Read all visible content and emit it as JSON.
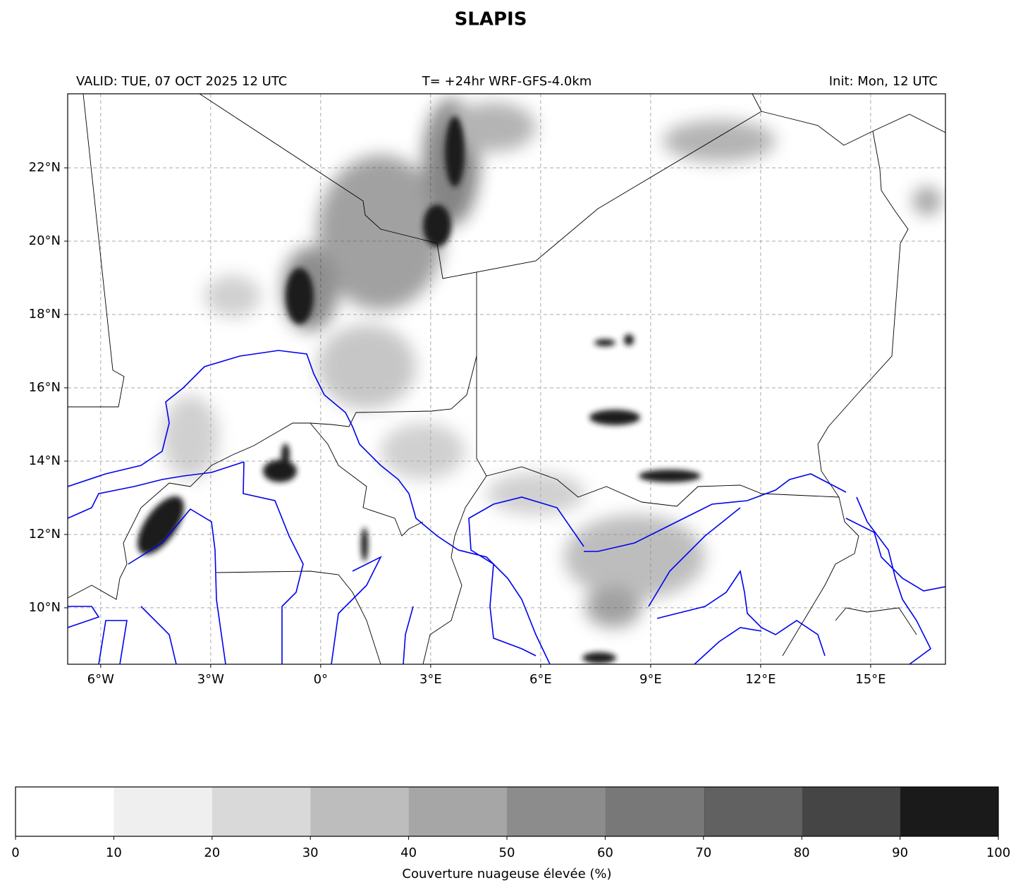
{
  "header": {
    "title": "SLAPIS",
    "valid": "VALID: TUE, 07 OCT 2025 12 UTC",
    "run": "T= +24hr WRF-GFS-4.0km",
    "init": "Init: Mon, 12 UTC"
  },
  "map": {
    "xlim": [
      -6.9,
      17.04
    ],
    "ylim": [
      8.46,
      24.02
    ],
    "xticks": [
      {
        "value": -6,
        "label": "6°W"
      },
      {
        "value": -3,
        "label": "3°W"
      },
      {
        "value": 0,
        "label": "0°"
      },
      {
        "value": 3,
        "label": "3°E"
      },
      {
        "value": 6,
        "label": "6°E"
      },
      {
        "value": 9,
        "label": "9°E"
      },
      {
        "value": 12,
        "label": "12°E"
      },
      {
        "value": 15,
        "label": "15°E"
      }
    ],
    "yticks": [
      {
        "value": 10,
        "label": "10°N"
      },
      {
        "value": 12,
        "label": "12°N"
      },
      {
        "value": 14,
        "label": "14°N"
      },
      {
        "value": 16,
        "label": "16°N"
      },
      {
        "value": 18,
        "label": "18°N"
      },
      {
        "value": 20,
        "label": "20°N"
      },
      {
        "value": 22,
        "label": "22°N"
      }
    ],
    "grid": true
  },
  "colorbar": {
    "bounds": [
      0,
      10,
      20,
      30,
      40,
      50,
      60,
      70,
      80,
      90,
      100
    ],
    "colors": [
      "#ffffff",
      "#efefef",
      "#d9d9d9",
      "#bdbdbd",
      "#a6a6a6",
      "#8c8c8c",
      "#787878",
      "#616161",
      "#454545",
      "#1a1a1a"
    ],
    "label": "Couverture nuageuse élevée (%)"
  }
}
